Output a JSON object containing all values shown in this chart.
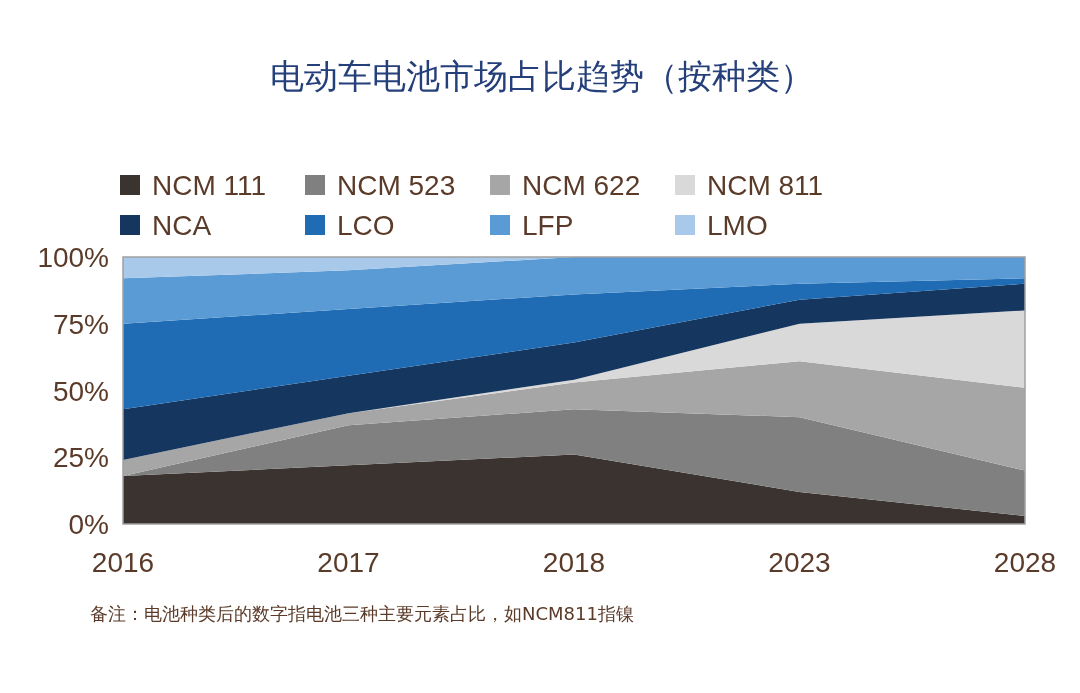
{
  "chart_data": {
    "type": "area",
    "stacked": true,
    "title": "电动车电池市场占比趋势（按种类）",
    "categories": [
      "2016",
      "2017",
      "2018",
      "2023",
      "2028"
    ],
    "series": [
      {
        "name": "NCM 111",
        "color": "#3a3330",
        "values": [
          18,
          22,
          26,
          12,
          3
        ]
      },
      {
        "name": "NCM 523",
        "color": "#808080",
        "values": [
          0,
          15,
          17,
          28,
          17
        ]
      },
      {
        "name": "NCM 622",
        "color": "#a6a6a6",
        "values": [
          6,
          4.5,
          10,
          21,
          31
        ]
      },
      {
        "name": "NCM 811",
        "color": "#d9d9d9",
        "values": [
          0,
          0,
          1,
          14,
          29
        ]
      },
      {
        "name": "NCA",
        "color": "#14365f",
        "values": [
          19,
          14,
          14,
          9,
          10
        ]
      },
      {
        "name": "LCO",
        "color": "#1f6cb5",
        "values": [
          32,
          25,
          18,
          6,
          2
        ]
      },
      {
        "name": "LFP",
        "color": "#5b9bd5",
        "values": [
          17,
          14.5,
          14,
          10,
          8
        ]
      },
      {
        "name": "LMO",
        "color": "#a9c9ea",
        "values": [
          8,
          5,
          0,
          0,
          0
        ]
      }
    ],
    "ylim": [
      0,
      100
    ],
    "yticks": [
      {
        "value": 0,
        "label": "0%"
      },
      {
        "value": 25,
        "label": "25%"
      },
      {
        "value": 50,
        "label": "50%"
      },
      {
        "value": 75,
        "label": "75%"
      },
      {
        "value": 100,
        "label": "100%"
      }
    ],
    "legend": "top",
    "grid": false,
    "annotations": [
      "备注：电池种类后的数字指电池三种主要元素占比，如NCM811指镍"
    ]
  }
}
